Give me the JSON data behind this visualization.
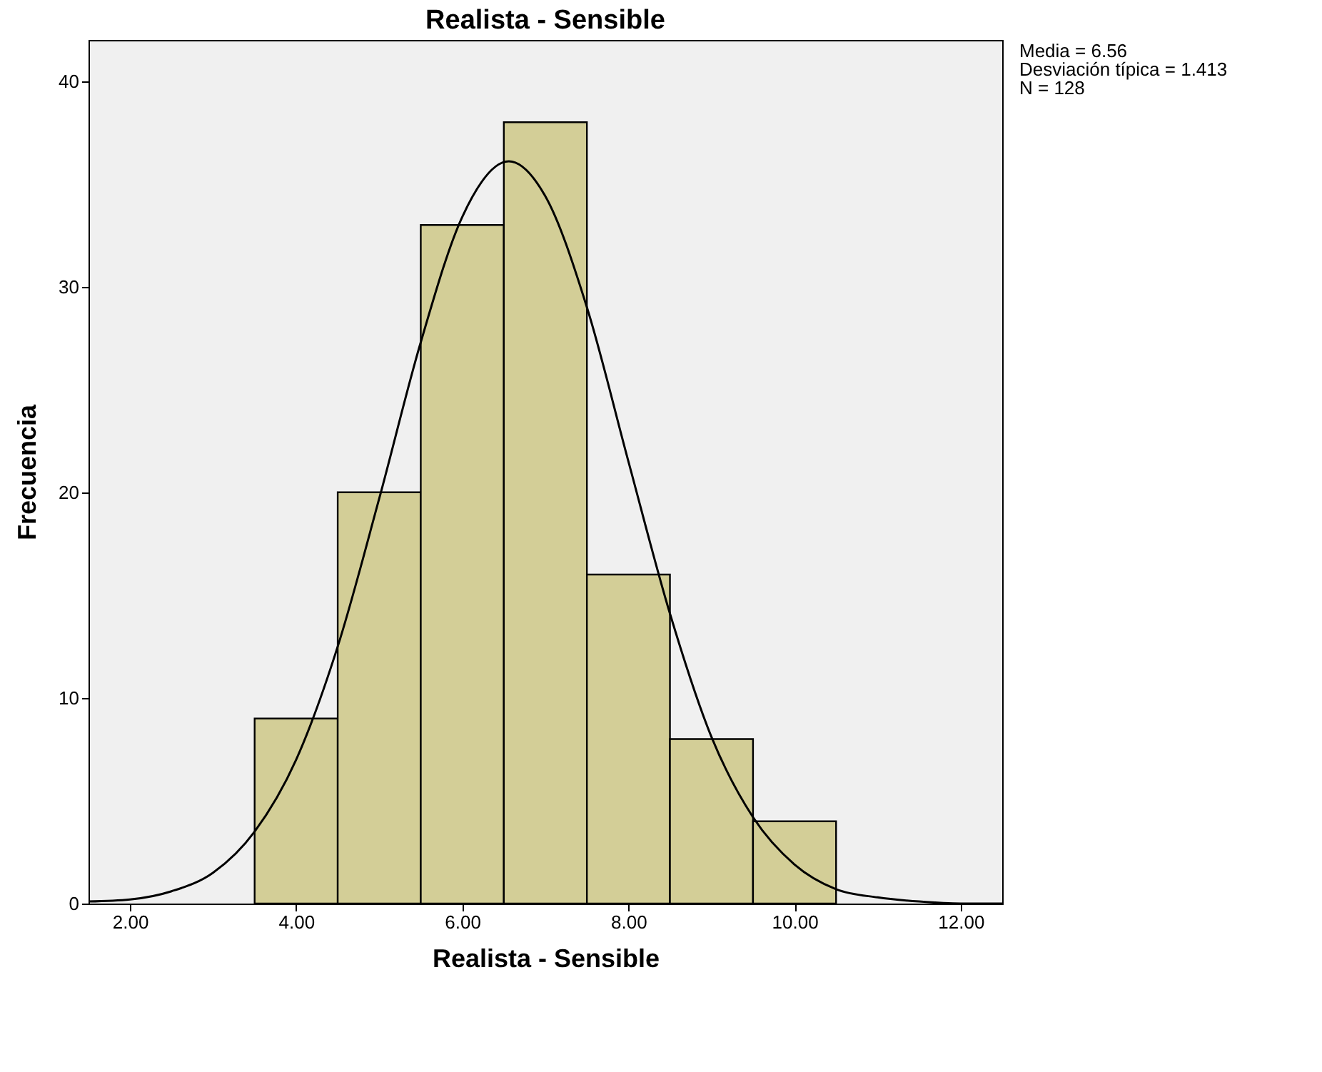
{
  "chart_data": {
    "type": "histogram",
    "title": "Realista - Sensible",
    "xlabel": "Realista - Sensible",
    "ylabel": "Frecuencia",
    "bins": [
      3.5,
      4.5,
      5.5,
      6.5,
      7.5,
      8.5,
      9.5,
      10.5
    ],
    "values": [
      9,
      20,
      33,
      38,
      16,
      8,
      4
    ],
    "color": "#d3ce97",
    "series": [
      {
        "type": "line",
        "color": "#000000",
        "x": [
          1.5,
          2.0,
          2.5,
          3.0,
          3.5,
          4.0,
          4.5,
          5.0,
          5.5,
          6.0,
          6.56,
          7.0,
          7.5,
          8.0,
          8.5,
          9.0,
          9.5,
          10.0,
          10.5,
          11.0,
          11.5,
          12.0,
          12.5
        ],
        "values": [
          0.1,
          0.2,
          0.6,
          1.5,
          3.5,
          7.0,
          12.5,
          19.7,
          27.3,
          33.4,
          36.1,
          34.4,
          29.0,
          21.5,
          14.1,
          8.1,
          4.2,
          1.9,
          0.7,
          0.3,
          0.1,
          0.0,
          0.0
        ]
      }
    ],
    "xlim": [
      1.5,
      12.5
    ],
    "xticks": [
      {
        "value": 2,
        "label": "2.00"
      },
      {
        "value": 4,
        "label": "4.00"
      },
      {
        "value": 6,
        "label": "6.00"
      },
      {
        "value": 8,
        "label": "8.00"
      },
      {
        "value": 10,
        "label": "10.00"
      },
      {
        "value": 12,
        "label": "12.00"
      }
    ],
    "ylim": [
      0,
      42
    ],
    "yticks": [
      0,
      10,
      20,
      30,
      40
    ],
    "grid": false,
    "annotations": [
      "Media = 6.56",
      "Desviación típica = 1.413",
      "N = 128"
    ]
  }
}
